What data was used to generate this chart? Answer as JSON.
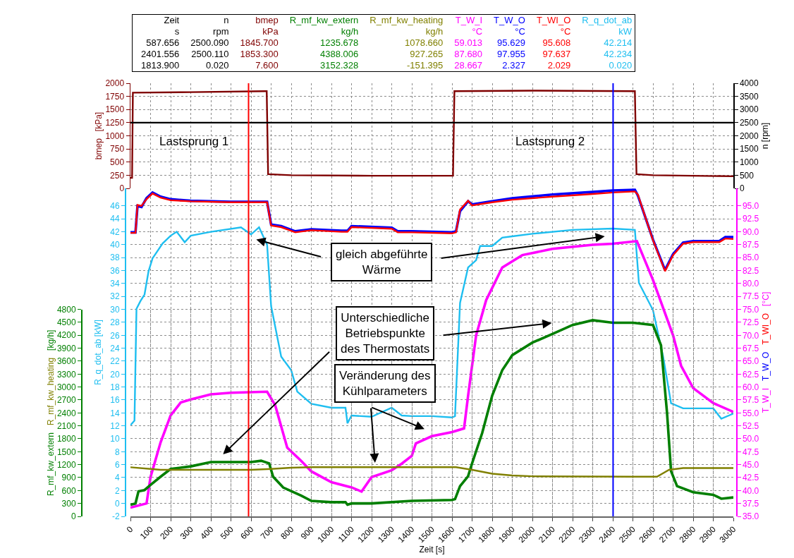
{
  "chart_data": [
    {
      "type": "line",
      "ylabel": "bmep  [kPa]",
      "y2label": "n [rpm]",
      "tick_labels": "y",
      "xlim": [
        0,
        3000
      ],
      "xticks": [
        0,
        100,
        200,
        300,
        400,
        500,
        600,
        700,
        800,
        900,
        1000,
        1100,
        1200,
        1300,
        1400,
        1500,
        1600,
        1700,
        1800,
        1900,
        2000,
        2100,
        2200,
        2300,
        2400,
        2500,
        2600,
        2700,
        2800,
        2900,
        3000
      ],
      "ylim": [
        0,
        2000
      ],
      "yticks": [
        0,
        250,
        500,
        750,
        1000,
        1250,
        1500,
        1750,
        2000
      ],
      "y2lim": [
        0,
        4000
      ],
      "y2ticks": [
        0,
        500,
        1000,
        1500,
        2000,
        2500,
        3000,
        3500,
        4000
      ],
      "grid": true,
      "legend": false,
      "series": [
        {
          "name": "n",
          "color": "#000000",
          "axis": "y2",
          "x": [
            0,
            3000
          ],
          "values": [
            2500,
            2500
          ]
        },
        {
          "name": "bmep",
          "color": "#7f0000",
          "x": [
            0,
            8,
            12,
            300,
            670,
            678,
            685,
            800,
            1200,
            1605,
            1612,
            2000,
            2510,
            2518,
            2600,
            3000
          ],
          "values": [
            200,
            200,
            1820,
            1830,
            1850,
            1850,
            270,
            250,
            240,
            240,
            1850,
            1860,
            1850,
            270,
            250,
            230
          ]
        }
      ],
      "ref_lines": [
        {
          "axis": "x",
          "value": 587.656,
          "color": "#ff0000"
        },
        {
          "axis": "x",
          "value": 2401.556,
          "color": "#0000ff"
        }
      ],
      "annotations": [
        "Zeit",
        "s",
        "rpm",
        "kPa",
        "kg/h",
        "kg/h",
        "°C",
        "°C",
        "°C",
        "kW",
        "587.656",
        "2500.090",
        "1845.700",
        "1235.678",
        "1078.660",
        "59.013",
        "95.629",
        "95.608",
        "42.214",
        "2401.556",
        "2500.110",
        "1853.300",
        "4388.006",
        "927.265",
        "87.680",
        "97.955",
        "97.637",
        "42.234",
        "1813.900",
        "0.020",
        "7.600",
        "3152.328",
        "-151.395",
        "28.667",
        "2.327",
        "2.029",
        "0.020",
        "Lastsprung 1",
        "Lastsprung 2"
      ]
    },
    {
      "type": "line",
      "xlabel": "Zeit [s]",
      "ylabel": "R_q_dot_ab [kW]",
      "y2label": "T_W_I   T_W_O   T_WI_O   [°C]",
      "y3label": "R_mf_kw_extern   R_mf_kw_heating   [kg/h]",
      "xlim": [
        0,
        3000
      ],
      "xticks": [
        0,
        100,
        200,
        300,
        400,
        500,
        600,
        700,
        800,
        900,
        1000,
        1100,
        1200,
        1300,
        1400,
        1500,
        1600,
        1700,
        1800,
        1900,
        2000,
        2100,
        2200,
        2300,
        2400,
        2500,
        2600,
        2700,
        2800,
        2900,
        3000
      ],
      "ylim": [
        -2,
        48.72
      ],
      "yticks": [
        -2,
        0,
        2,
        4,
        6,
        8,
        10,
        12,
        14,
        16,
        18,
        20,
        22,
        24,
        26,
        28,
        30,
        32,
        34,
        36,
        38,
        40,
        42,
        44,
        46
      ],
      "y2lim": [
        35,
        98.4
      ],
      "y2ticks": [
        {
          "value": 35,
          "label": "35.0"
        },
        37.5,
        {
          "value": 40,
          "label": "40.0"
        },
        42.5,
        {
          "value": 45,
          "label": "45.0"
        },
        47.5,
        {
          "value": 50,
          "label": "50.0"
        },
        52.5,
        {
          "value": 55,
          "label": "55.0"
        },
        57.5,
        {
          "value": 60,
          "label": "60.0"
        },
        62.5,
        {
          "value": 65,
          "label": "65.0"
        },
        67.5,
        {
          "value": 70,
          "label": "70.0"
        },
        72.5,
        {
          "value": 75,
          "label": "75.0"
        },
        77.5,
        {
          "value": 80,
          "label": "80.0"
        },
        82.5,
        {
          "value": 85,
          "label": "85.0"
        },
        87.5,
        {
          "value": 90,
          "label": "90.0"
        },
        92.5,
        {
          "value": 95,
          "label": "95.0"
        }
      ],
      "y3lim": [
        0,
        4800
      ],
      "y3ticks": [
        0,
        300,
        600,
        900,
        1200,
        1500,
        1800,
        2100,
        2400,
        2700,
        3000,
        3300,
        3600,
        3900,
        4200,
        4500,
        4800
      ],
      "grid": true,
      "legend": false,
      "series": [
        {
          "name": "R_mf_kw_extern",
          "color": "#007f00",
          "axis": "y3",
          "x": [
            0,
            25,
            40,
            70,
            100,
            150,
            200,
            300,
            400,
            500,
            600,
            650,
            690,
            710,
            760,
            850,
            900,
            1000,
            1070,
            1080,
            1100,
            1200,
            1400,
            1600,
            1615,
            1640,
            1680,
            1700,
            1750,
            1800,
            1850,
            1900,
            2000,
            2100,
            2200,
            2300,
            2400,
            2500,
            2600,
            2640,
            2670,
            2690,
            2720,
            2800,
            2900,
            2940,
            3000
          ],
          "values": [
            270,
            300,
            580,
            610,
            730,
            920,
            1100,
            1160,
            1260,
            1260,
            1260,
            1290,
            1230,
            920,
            670,
            480,
            360,
            330,
            330,
            270,
            300,
            300,
            360,
            380,
            400,
            700,
            930,
            1230,
            1930,
            2800,
            3390,
            3740,
            4030,
            4230,
            4440,
            4550,
            4490,
            4490,
            4440,
            3970,
            2400,
            1050,
            700,
            560,
            500,
            410,
            440
          ]
        },
        {
          "name": "R_mf_kw_heating",
          "color": "#808000",
          "axis": "y3",
          "x": [
            0,
            100,
            150,
            300,
            600,
            700,
            800,
            900,
            1400,
            1620,
            1700,
            1800,
            1900,
            2000,
            2500,
            2620,
            2680,
            2750,
            3000
          ],
          "values": [
            1140,
            1100,
            1080,
            1080,
            1080,
            1100,
            1130,
            1140,
            1140,
            1140,
            1080,
            990,
            950,
            930,
            920,
            920,
            1080,
            1120,
            1120
          ]
        },
        {
          "name": "T_W_I",
          "color": "#ff00ff",
          "axis": "y2",
          "x": [
            0,
            80,
            100,
            150,
            200,
            250,
            300,
            400,
            500,
            680,
            720,
            780,
            850,
            900,
            1000,
            1100,
            1150,
            1200,
            1300,
            1350,
            1400,
            1420,
            1500,
            1600,
            1660,
            1680,
            1720,
            1770,
            1850,
            1950,
            2100,
            2300,
            2400,
            2520,
            2600,
            2700,
            2740,
            2800,
            2900,
            3000
          ],
          "values": [
            36.7,
            37.5,
            42.6,
            49.3,
            54.5,
            57.0,
            57.6,
            58.6,
            58.9,
            59.1,
            56.5,
            48.3,
            45.7,
            43.7,
            41.6,
            40.6,
            39.8,
            42.6,
            43.9,
            45.2,
            46.7,
            49.1,
            50.5,
            51.3,
            52.0,
            58.3,
            70.0,
            76.8,
            83.1,
            85.5,
            86.7,
            87.5,
            87.7,
            88.2,
            80.7,
            70.0,
            64.1,
            59.8,
            56.9,
            55.2
          ]
        },
        {
          "name": "T_W_O",
          "color": "#0000ff",
          "axis": "y2",
          "x": [
            0,
            25,
            35,
            55,
            80,
            110,
            150,
            200,
            300,
            500,
            680,
            700,
            750,
            820,
            900,
            1050,
            1080,
            1100,
            1300,
            1330,
            1400,
            1600,
            1620,
            1640,
            1680,
            1700,
            1800,
            1900,
            2100,
            2300,
            2400,
            2510,
            2525,
            2600,
            2660,
            2700,
            2750,
            2800,
            2930,
            2960,
            3000
          ],
          "values": [
            89.9,
            89.9,
            95.0,
            94.8,
            96.5,
            97.6,
            96.8,
            96.3,
            96.0,
            95.8,
            95.8,
            91.4,
            91.1,
            90.1,
            90.5,
            90.2,
            90.2,
            91.1,
            90.8,
            90.1,
            90.1,
            89.9,
            90.1,
            94.0,
            95.9,
            95.3,
            95.9,
            96.5,
            97.2,
            97.7,
            98.0,
            98.1,
            97.0,
            88.5,
            82.6,
            85.7,
            87.9,
            88.2,
            88.2,
            89.0,
            89.0
          ]
        },
        {
          "name": "T_WI_O",
          "color": "#ff0000",
          "axis": "y2",
          "x": [
            0,
            25,
            35,
            55,
            80,
            110,
            150,
            200,
            300,
            500,
            680,
            700,
            750,
            820,
            900,
            1050,
            1080,
            1100,
            1300,
            1330,
            1400,
            1600,
            1620,
            1640,
            1680,
            1700,
            1800,
            1900,
            2100,
            2300,
            2400,
            2510,
            2525,
            2600,
            2660,
            2700,
            2750,
            2800,
            2930,
            2960,
            3000
          ],
          "values": [
            89.8,
            89.8,
            95.2,
            95.0,
            96.3,
            97.4,
            96.6,
            96.1,
            95.9,
            95.7,
            95.7,
            91.2,
            90.9,
            89.9,
            90.3,
            90.0,
            90.0,
            90.9,
            90.6,
            89.9,
            89.9,
            89.7,
            89.9,
            94.3,
            96.0,
            95.1,
            95.7,
            96.2,
            96.8,
            97.3,
            97.6,
            97.8,
            97.2,
            88.4,
            82.4,
            85.5,
            87.7,
            88.0,
            88.0,
            88.7,
            88.6
          ]
        },
        {
          "name": "R_q_dot_ab",
          "color": "#1ebef0",
          "x": [
            0,
            20,
            30,
            50,
            70,
            90,
            110,
            160,
            200,
            230,
            270,
            300,
            400,
            550,
            600,
            640,
            680,
            700,
            750,
            800,
            830,
            900,
            1000,
            1070,
            1080,
            1100,
            1200,
            1300,
            1350,
            1400,
            1500,
            1600,
            1615,
            1640,
            1680,
            1720,
            1740,
            1800,
            1850,
            1900,
            2000,
            2200,
            2400,
            2510,
            2530,
            2600,
            2650,
            2690,
            2750,
            2900,
            2940,
            3000
          ],
          "values": [
            12.1,
            12.8,
            30.1,
            31.3,
            32.3,
            35.9,
            37.9,
            40.2,
            41.4,
            42.0,
            40.4,
            41.4,
            42.0,
            42.7,
            41.6,
            42.7,
            40.0,
            30.5,
            22.7,
            20.6,
            17.3,
            15.4,
            14.8,
            14.8,
            12.4,
            13.6,
            13.4,
            14.8,
            13.6,
            13.5,
            13.5,
            13.3,
            13.5,
            31.0,
            36.5,
            37.6,
            39.8,
            39.8,
            41.1,
            41.3,
            41.7,
            42.3,
            42.5,
            42.3,
            34.1,
            29.9,
            22.8,
            15.5,
            14.7,
            14.7,
            13.1,
            13.9
          ]
        }
      ],
      "ref_lines": [
        {
          "axis": "x",
          "value": 587.656,
          "color": "#ff0000"
        },
        {
          "axis": "x",
          "value": 2401.556,
          "color": "#0000ff"
        }
      ],
      "annotations": [
        "gleich abgeführte\nWärme",
        "Unterschiedliche\nBetriebspunkte\ndes Thermostats",
        "Veränderung des\nKühlparameters"
      ]
    }
  ]
}
